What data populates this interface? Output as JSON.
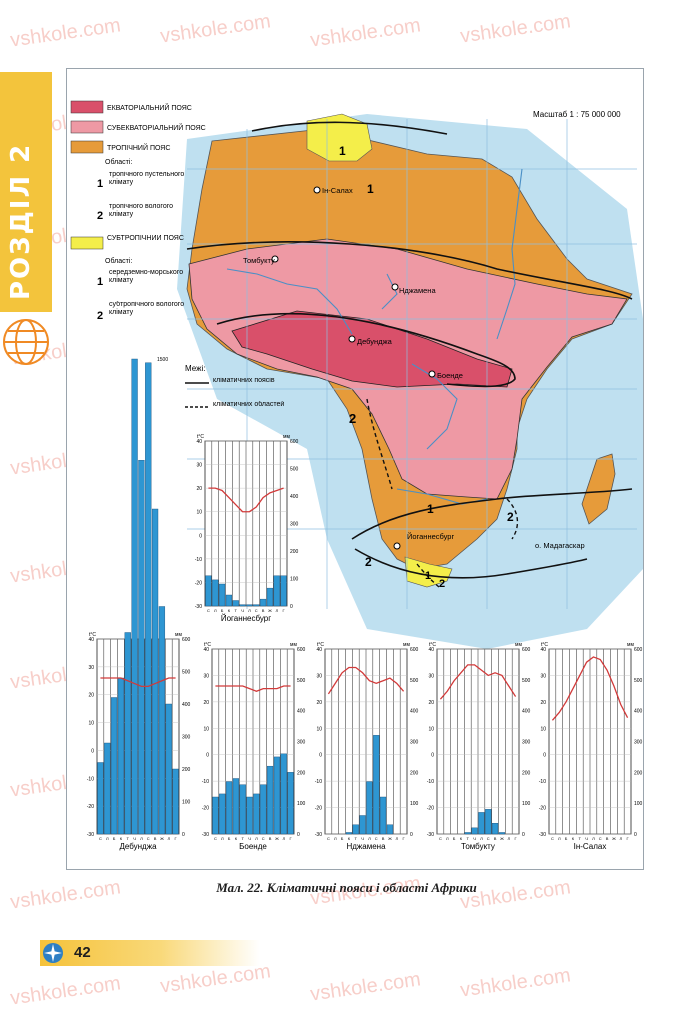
{
  "section": {
    "label": "РОЗДІЛ 2"
  },
  "map": {
    "scale": "Масштаб 1 : 75 000 000",
    "legend": {
      "equatorial": "ЕКВАТОРІАЛЬНИЙ ПОЯС",
      "subequatorial": "СУБЕКВАТОРІАЛЬНИЙ ПОЯС",
      "tropical": "ТРОПІЧНИЙ ПОЯС",
      "tropical_areas_title": "Області:",
      "tropical_area_1": "тропічного пустельного клімату",
      "tropical_area_2": "тропічного вологого клімату",
      "subtropical": "СУБТРОПІЧНИЙ ПОЯС",
      "subtropical_areas_title": "Області:",
      "subtropical_area_1": "середземно-морського клімату",
      "subtropical_area_2": "субтропічного вологого клімату",
      "num_1": "1",
      "num_2": "2",
      "bounds_title": "Межі:",
      "bound_belts": "кліматичних поясів",
      "bound_areas": "кліматичних областей"
    },
    "cities": {
      "in_salah": "Ін-Салах",
      "timbuktu": "Томбукту",
      "ndjamena": "Нджамена",
      "debundzha": "Дебунджа",
      "boende": "Боенде",
      "johannesburg": "Йоганнесбург",
      "madagascar": "о. Мадагаскар"
    },
    "region_numbers": {
      "n1_north": "1",
      "n1_sahara": "1",
      "n2_west": "2",
      "n1_south": "1",
      "n2_east": "2",
      "n2_southwest": "2",
      "n1_cape": "1",
      "n2_cape": "2"
    },
    "colors": {
      "equatorial": "#d9506a",
      "subequatorial": "#ee99a4",
      "tropical": "#e69b3a",
      "subtropical": "#f4ee4a",
      "ocean": "#bfe0f0",
      "river": "#4a8fc6",
      "bar": "#2e96d2",
      "temp_line": "#d23a3a"
    }
  },
  "climatograms": [
    {
      "station": "Дебунджа",
      "tmin": -30,
      "tmax": 40,
      "pmax": 600,
      "top_label": "1500",
      "precip": [
        220,
        280,
        420,
        480,
        620,
        1500,
        1150,
        1450,
        1000,
        700,
        400,
        200
      ],
      "temp": [
        26,
        26,
        26,
        26,
        25,
        24,
        23,
        23,
        24,
        25,
        26,
        26
      ]
    },
    {
      "station": "Боенде",
      "tmin": -30,
      "tmax": 40,
      "pmax": 600,
      "top_label": "",
      "precip": [
        120,
        130,
        170,
        180,
        160,
        120,
        130,
        160,
        220,
        250,
        260,
        200
      ],
      "temp": [
        26,
        26,
        26,
        26,
        26,
        25,
        24,
        25,
        25,
        25,
        26,
        26
      ]
    },
    {
      "station": "Нджамена",
      "tmin": -30,
      "tmax": 40,
      "pmax": 600,
      "top_label": "",
      "precip": [
        0,
        0,
        0,
        5,
        30,
        60,
        170,
        320,
        120,
        30,
        0,
        0
      ],
      "temp": [
        23,
        27,
        31,
        33,
        33,
        31,
        28,
        27,
        28,
        29,
        27,
        24
      ]
    },
    {
      "station": "Томбукту",
      "tmin": -30,
      "tmax": 40,
      "pmax": 600,
      "top_label": "",
      "precip": [
        0,
        0,
        0,
        0,
        5,
        20,
        70,
        80,
        35,
        5,
        0,
        0
      ],
      "temp": [
        21,
        24,
        28,
        31,
        34,
        34,
        32,
        30,
        31,
        30,
        26,
        22
      ]
    },
    {
      "station": "Ін-Салах",
      "tmin": -30,
      "tmax": 40,
      "pmax": 600,
      "top_label": "",
      "precip": [
        0,
        0,
        0,
        0,
        0,
        0,
        0,
        0,
        0,
        0,
        0,
        0
      ],
      "temp": [
        13,
        16,
        20,
        25,
        30,
        35,
        37,
        36,
        32,
        26,
        19,
        14
      ]
    },
    {
      "station": "Йоганнесбург",
      "tmin": -30,
      "tmax": 40,
      "pmax": 600,
      "top_label": "",
      "precip": [
        110,
        95,
        80,
        40,
        20,
        5,
        5,
        5,
        25,
        65,
        110,
        110
      ],
      "temp": [
        20,
        20,
        19,
        16,
        13,
        10,
        10,
        12,
        16,
        18,
        19,
        20
      ]
    }
  ],
  "axis": {
    "temp_unit": "t°C",
    "precip_unit": "мм",
    "months": [
      "С",
      "Л",
      "Б",
      "К",
      "Т",
      "Ч",
      "Л",
      "С",
      "В",
      "Ж",
      "Л",
      "Г"
    ]
  },
  "caption": "Мал. 22. Кліматичні пояси і області Африки",
  "page_number": "42",
  "watermark": "vshkole.com"
}
